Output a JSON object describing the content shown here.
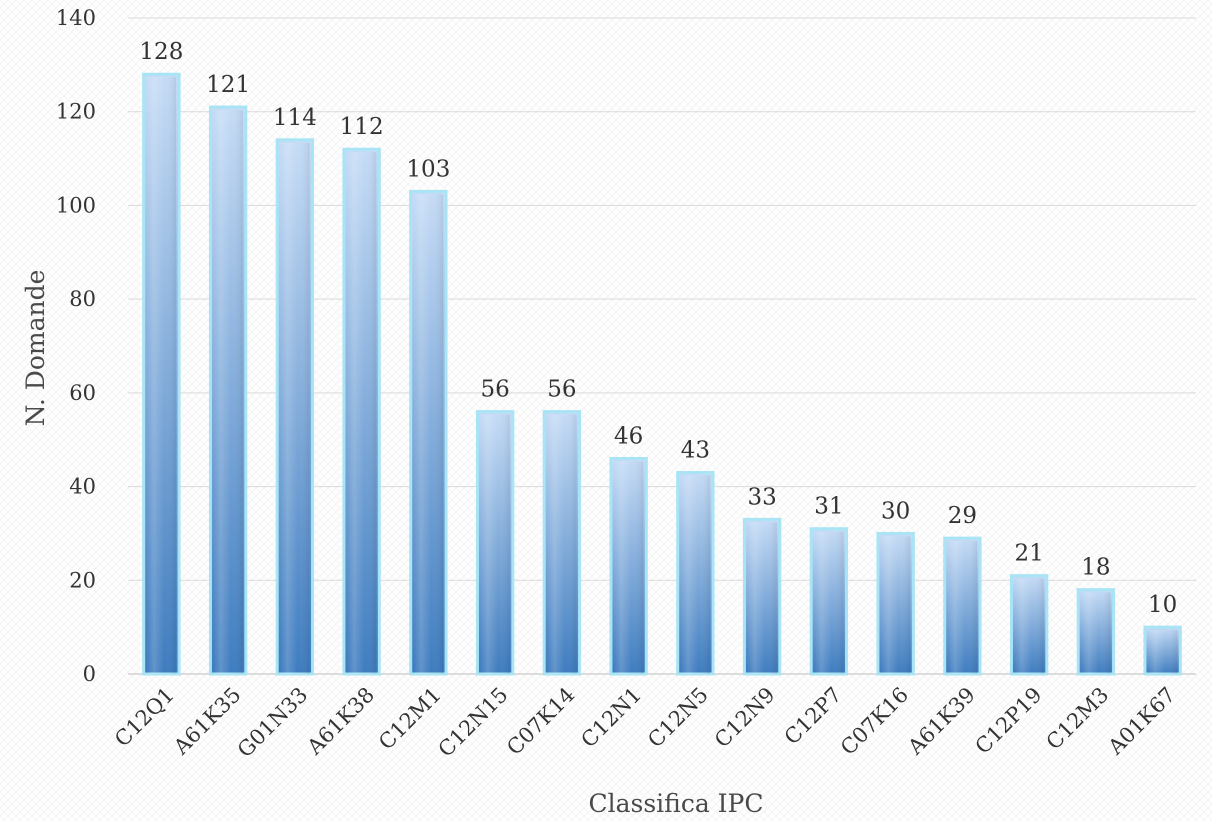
{
  "chart_data": {
    "type": "bar",
    "title": "",
    "xlabel": "Classifica IPC",
    "ylabel": "N. Domande",
    "ylim": [
      0,
      140
    ],
    "yticks": [
      0,
      20,
      40,
      60,
      80,
      100,
      120,
      140
    ],
    "grid": true,
    "legend": "none",
    "categories": [
      "C12Q1",
      "A61K35",
      "G01N33",
      "A61K38",
      "C12M1",
      "C12N15",
      "C07K14",
      "C12N1",
      "C12N5",
      "C12N9",
      "C12P7",
      "C07K16",
      "A61K39",
      "C12P19",
      "C12M3",
      "A01K67"
    ],
    "values": [
      128,
      121,
      114,
      112,
      103,
      56,
      56,
      46,
      43,
      33,
      31,
      30,
      29,
      21,
      18,
      10
    ],
    "bar_color_top": "#c6dcf6",
    "bar_color_bottom": "#3e7cbf",
    "bar_edge_color": "#a9e4f5"
  }
}
